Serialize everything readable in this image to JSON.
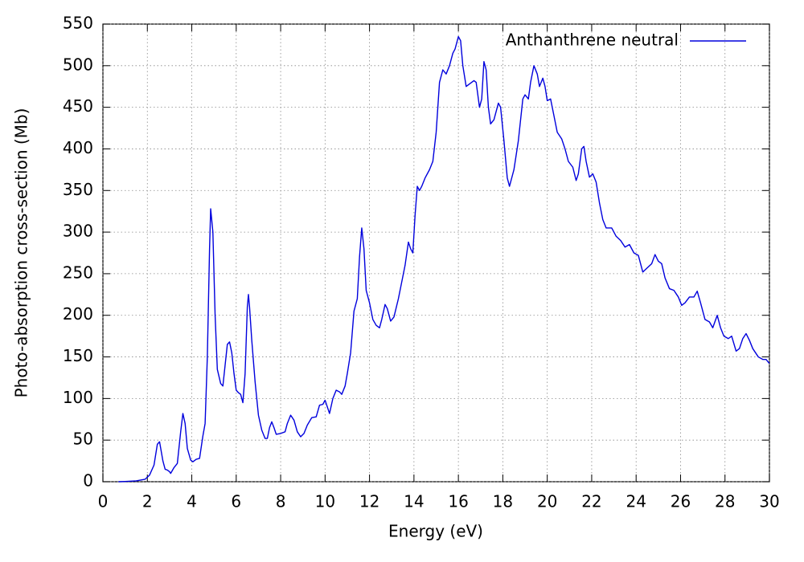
{
  "chart_data": {
    "type": "line",
    "xlabel": "Energy (eV)",
    "ylabel": "Photo-absorption cross-section (Mb)",
    "x": [
      0.7,
      1.0,
      1.5,
      1.9,
      2.1,
      2.3,
      2.45,
      2.55,
      2.7,
      2.8,
      2.9,
      3.0,
      3.05,
      3.2,
      3.35,
      3.5,
      3.6,
      3.7,
      3.8,
      3.95,
      4.05,
      4.2,
      4.35,
      4.5,
      4.6,
      4.7,
      4.8,
      4.85,
      4.95,
      5.05,
      5.15,
      5.3,
      5.4,
      5.5,
      5.6,
      5.7,
      5.8,
      5.9,
      6.0,
      6.1,
      6.2,
      6.3,
      6.4,
      6.5,
      6.55,
      6.6,
      6.7,
      6.85,
      7.0,
      7.15,
      7.3,
      7.4,
      7.5,
      7.6,
      7.7,
      7.8,
      8.0,
      8.2,
      8.3,
      8.45,
      8.6,
      8.75,
      8.9,
      9.05,
      9.2,
      9.4,
      9.6,
      9.75,
      9.9,
      10.0,
      10.1,
      10.2,
      10.35,
      10.5,
      10.65,
      10.75,
      10.9,
      11.0,
      11.15,
      11.3,
      11.45,
      11.55,
      11.65,
      11.75,
      11.85,
      12.0,
      12.15,
      12.3,
      12.45,
      12.55,
      12.7,
      12.8,
      12.95,
      13.1,
      13.3,
      13.45,
      13.6,
      13.75,
      13.85,
      13.95,
      14.05,
      14.15,
      14.25,
      14.35,
      14.5,
      14.7,
      14.85,
      15.0,
      15.15,
      15.3,
      15.45,
      15.6,
      15.75,
      15.85,
      16.0,
      16.1,
      16.2,
      16.35,
      16.5,
      16.7,
      16.8,
      16.95,
      17.05,
      17.15,
      17.25,
      17.35,
      17.45,
      17.6,
      17.8,
      17.9,
      18.05,
      18.2,
      18.3,
      18.5,
      18.7,
      18.9,
      19.0,
      19.15,
      19.25,
      19.4,
      19.55,
      19.65,
      19.8,
      19.9,
      20.0,
      20.15,
      20.3,
      20.45,
      20.65,
      20.8,
      20.95,
      21.15,
      21.3,
      21.4,
      21.55,
      21.65,
      21.75,
      21.9,
      22.05,
      22.2,
      22.35,
      22.5,
      22.65,
      22.9,
      23.1,
      23.3,
      23.5,
      23.7,
      23.9,
      24.1,
      24.3,
      24.5,
      24.7,
      24.85,
      25.0,
      25.15,
      25.3,
      25.5,
      25.7,
      25.9,
      26.05,
      26.2,
      26.4,
      26.6,
      26.75,
      26.9,
      27.1,
      27.3,
      27.45,
      27.65,
      27.8,
      27.95,
      28.15,
      28.3,
      28.5,
      28.65,
      28.8,
      28.95,
      29.1,
      29.25,
      29.5,
      29.7,
      29.85,
      30.0
    ],
    "series": [
      {
        "name": "Anthanthrene neutral",
        "color": "#0000dd",
        "values": [
          0,
          0.3,
          1,
          3,
          8,
          20,
          45,
          48,
          25,
          15,
          14,
          12,
          10,
          17,
          22,
          60,
          82,
          70,
          40,
          26,
          24,
          27,
          28,
          55,
          70,
          150,
          280,
          328,
          300,
          200,
          135,
          118,
          115,
          140,
          165,
          168,
          155,
          130,
          110,
          107,
          105,
          95,
          130,
          210,
          225,
          210,
          170,
          120,
          80,
          62,
          52,
          52,
          65,
          72,
          65,
          57,
          58,
          60,
          70,
          80,
          74,
          60,
          54,
          58,
          68,
          77,
          78,
          92,
          93,
          98,
          90,
          82,
          100,
          110,
          108,
          105,
          115,
          130,
          155,
          205,
          220,
          270,
          305,
          280,
          230,
          215,
          195,
          188,
          185,
          195,
          213,
          208,
          193,
          198,
          220,
          240,
          260,
          288,
          280,
          275,
          320,
          355,
          350,
          355,
          365,
          375,
          385,
          420,
          480,
          495,
          490,
          500,
          515,
          520,
          535,
          530,
          500,
          475,
          478,
          482,
          480,
          450,
          460,
          505,
          495,
          450,
          430,
          435,
          455,
          450,
          410,
          365,
          355,
          375,
          410,
          460,
          465,
          460,
          480,
          500,
          490,
          475,
          485,
          475,
          458,
          460,
          440,
          420,
          412,
          400,
          385,
          378,
          362,
          370,
          400,
          403,
          385,
          366,
          370,
          360,
          335,
          315,
          305,
          305,
          295,
          290,
          282,
          285,
          275,
          272,
          252,
          257,
          262,
          273,
          265,
          262,
          245,
          232,
          230,
          222,
          212,
          215,
          222,
          222,
          229,
          215,
          195,
          192,
          185,
          200,
          185,
          175,
          172,
          175,
          157,
          160,
          172,
          178,
          170,
          160,
          150,
          147,
          147,
          142
        ]
      }
    ],
    "xlim": [
      0,
      30
    ],
    "xticks": [
      0,
      2,
      4,
      6,
      8,
      10,
      12,
      14,
      16,
      18,
      20,
      22,
      24,
      26,
      28,
      30
    ],
    "ylim": [
      0,
      550
    ],
    "yticks": [
      0,
      50,
      100,
      150,
      200,
      250,
      300,
      350,
      400,
      450,
      500,
      550
    ],
    "grid": true,
    "legend": "top right"
  }
}
